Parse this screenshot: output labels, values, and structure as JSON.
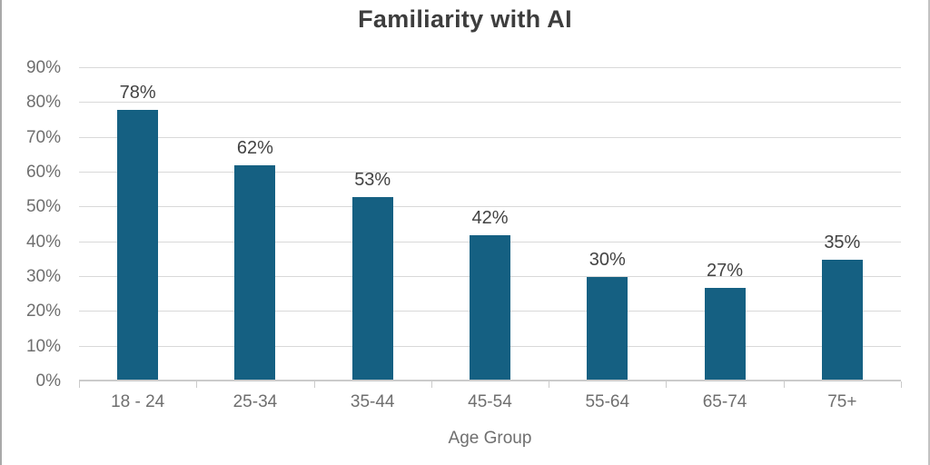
{
  "chart_data": {
    "type": "bar",
    "title": "Familiarity with AI",
    "categories": [
      "18 - 24",
      "25-34",
      "35-44",
      "45-54",
      "55-64",
      "65-74",
      "75+"
    ],
    "values": [
      78,
      62,
      53,
      42,
      30,
      27,
      35
    ],
    "value_labels": [
      "78%",
      "62%",
      "53%",
      "42%",
      "30%",
      "27%",
      "35%"
    ],
    "xlabel": "Age Group",
    "ylabel": "",
    "ylim": [
      0,
      90
    ],
    "ytick_step": 10,
    "yticks": [
      "0%",
      "10%",
      "20%",
      "30%",
      "40%",
      "50%",
      "60%",
      "70%",
      "80%",
      "90%"
    ],
    "grid": true,
    "legend_position": "none",
    "bar_color": "#156082",
    "gridline_color": "#d9d9d9",
    "axis_line_color": "#cbcbcb",
    "title_color": "#3d3d3d",
    "tick_label_color": "#6f6f6f",
    "data_label_color": "#434343"
  }
}
